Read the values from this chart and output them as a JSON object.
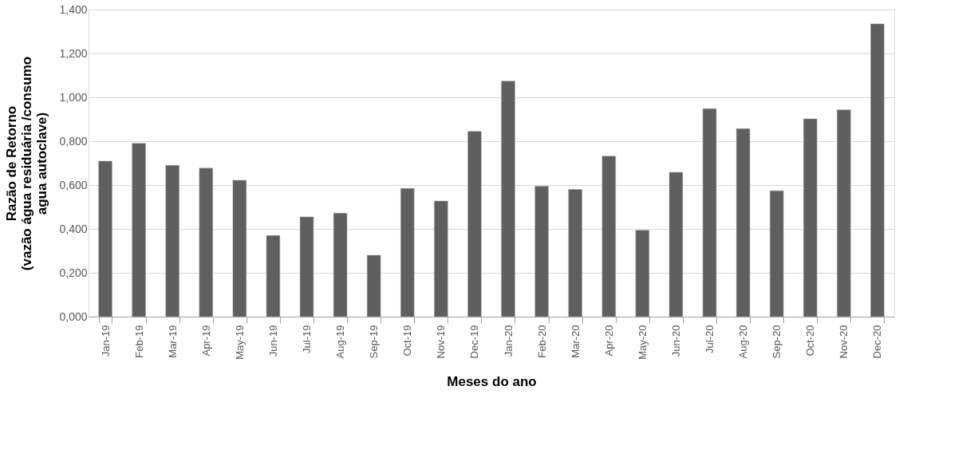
{
  "chart_data": {
    "type": "bar",
    "xlabel": "Meses do ano",
    "ylabel": "Razão de Retorno\n(vazão água residuária /consumo\nagua autoclave)",
    "categories": [
      "Jan-19",
      "Feb-19",
      "Mar-19",
      "Apr-19",
      "May-19",
      "Jun-19",
      "Jul-19",
      "Aug-19",
      "Sep-19",
      "Oct-19",
      "Nov-19",
      "Dec-19",
      "Jan-20",
      "Feb-20",
      "Mar-20",
      "Apr-20",
      "May-20",
      "Jun-20",
      "Jul-20",
      "Aug-20",
      "Sep-20",
      "Oct-20",
      "Nov-20",
      "Dec-20"
    ],
    "values": [
      0.709,
      0.79,
      0.69,
      0.677,
      0.622,
      0.37,
      0.455,
      0.472,
      0.28,
      0.585,
      0.527,
      0.845,
      1.074,
      0.595,
      0.58,
      0.732,
      0.394,
      0.658,
      0.948,
      0.857,
      0.574,
      0.902,
      0.943,
      1.335
    ],
    "color": "#5f5f5f",
    "ylim": [
      0,
      1.4
    ],
    "yticks": [
      {
        "value": 0,
        "label": "0,000"
      },
      {
        "value": 0.2,
        "label": "0,200"
      },
      {
        "value": 0.4,
        "label": "0,400"
      },
      {
        "value": 0.6,
        "label": "0,600"
      },
      {
        "value": 0.8,
        "label": "0,800"
      },
      {
        "value": 1.0,
        "label": "1,000"
      },
      {
        "value": 1.2,
        "label": "1,200"
      },
      {
        "value": 1.4,
        "label": "1,400"
      }
    ],
    "grid": "y"
  }
}
